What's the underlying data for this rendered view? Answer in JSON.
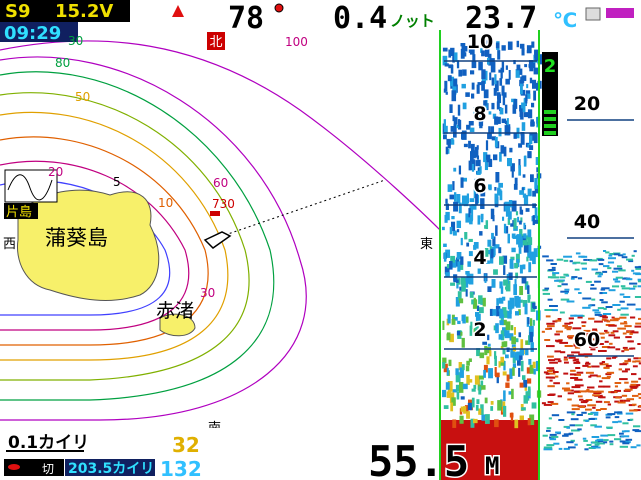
{
  "status": {
    "signal": "S9",
    "voltage": "15.2V",
    "time": "09:29",
    "heading": "78",
    "speed": "0.4",
    "speed_unit": "ノット",
    "water_temp": "23.7",
    "temp_unit": "℃"
  },
  "map": {
    "north": "北",
    "west": "西",
    "east": "東",
    "south": "南",
    "contours": [
      "30",
      "80",
      "50",
      "20",
      "5",
      "10",
      "60",
      "100",
      "30"
    ],
    "waypoint": "730",
    "islands": [
      "蒲葵島",
      "赤渚",
      "片島"
    ]
  },
  "bottom": {
    "scale": "0.1カイリ",
    "value1": "32",
    "mode": "切",
    "distance": "203.5カイリ",
    "value2": "132"
  },
  "sonar": {
    "zoom_scale": [
      "10",
      "8",
      "6",
      "4",
      "2"
    ],
    "depth_scale": [
      "20",
      "40",
      "60"
    ],
    "gain": "2",
    "depth": "55.5",
    "depth_unit": "M"
  }
}
